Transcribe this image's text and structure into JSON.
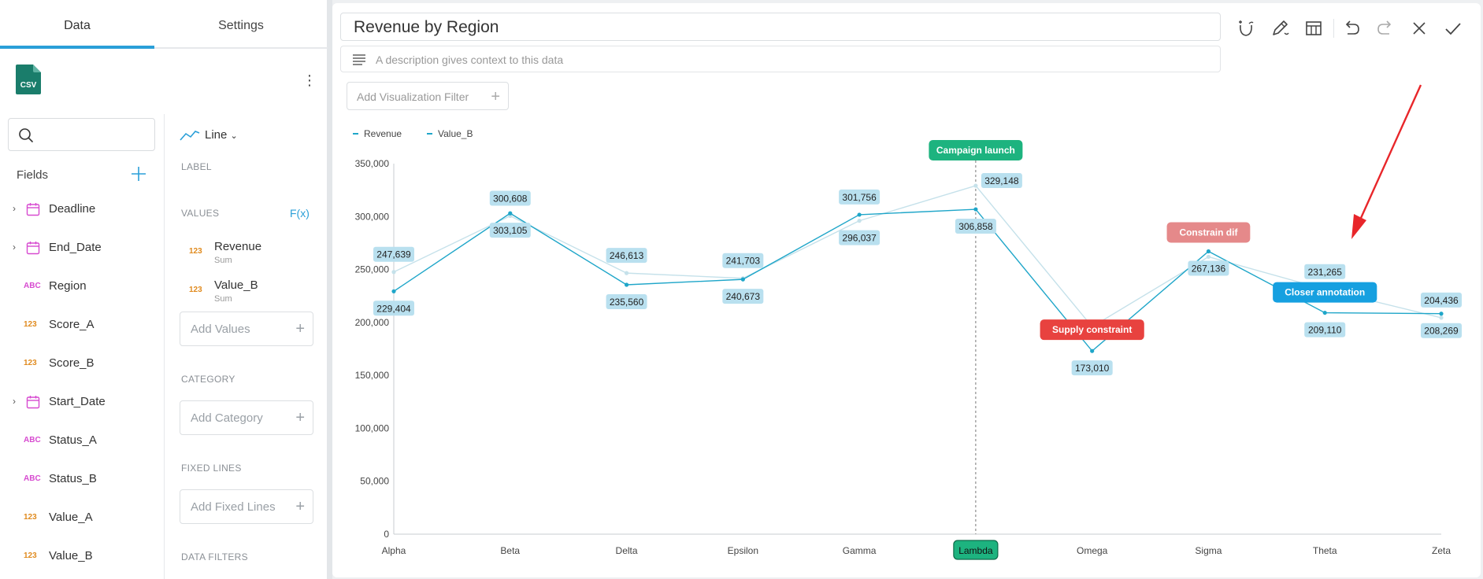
{
  "tabs": {
    "data": "Data",
    "settings": "Settings"
  },
  "source": {
    "icon_text": "CSV",
    "icon_color": "#1a7d6b"
  },
  "search": {
    "value": "",
    "placeholder": ""
  },
  "fields": {
    "title": "Fields",
    "items": [
      {
        "name": "Deadline",
        "type": "date",
        "expandable": true
      },
      {
        "name": "End_Date",
        "type": "date",
        "expandable": true
      },
      {
        "name": "Region",
        "type": "abc",
        "expandable": false
      },
      {
        "name": "Score_A",
        "type": "num",
        "expandable": false
      },
      {
        "name": "Score_B",
        "type": "num",
        "expandable": false
      },
      {
        "name": "Start_Date",
        "type": "date",
        "expandable": true
      },
      {
        "name": "Status_A",
        "type": "abc",
        "expandable": false
      },
      {
        "name": "Status_B",
        "type": "abc",
        "expandable": false
      },
      {
        "name": "Value_A",
        "type": "num",
        "expandable": false
      },
      {
        "name": "Value_B",
        "type": "num",
        "expandable": false
      }
    ],
    "type_badges": {
      "abc": "ABC",
      "num": "123"
    }
  },
  "config": {
    "viz_type": "Line",
    "label_section": "LABEL",
    "values_section": "VALUES",
    "fx": "F(x)",
    "values": [
      {
        "name": "Revenue",
        "agg": "Sum"
      },
      {
        "name": "Value_B",
        "agg": "Sum"
      }
    ],
    "add_values": "Add Values",
    "category_section": "CATEGORY",
    "add_category": "Add Category",
    "fixed_lines_section": "FIXED LINES",
    "add_fixed_lines": "Add Fixed Lines",
    "data_filters_section": "DATA FILTERS"
  },
  "editor": {
    "title": "Revenue by Region",
    "description_placeholder": "A description gives context to this data",
    "add_filter": "Add Visualization Filter"
  },
  "chart_data": {
    "type": "line",
    "categories": [
      "Alpha",
      "Beta",
      "Delta",
      "Epsilon",
      "Gamma",
      "Lambda",
      "Omega",
      "Sigma",
      "Theta",
      "Zeta"
    ],
    "highlight_category": "Lambda",
    "series": [
      {
        "name": "Revenue",
        "color": "#1fa6c9",
        "values": [
          229404,
          303105,
          235560,
          240673,
          301756,
          306858,
          173010,
          267136,
          209110,
          208269
        ]
      },
      {
        "name": "Value_B",
        "color": "#c5e1ea",
        "values": [
          247639,
          300608,
          246613,
          241703,
          296037,
          329148,
          196000,
          262000,
          231265,
          204436
        ]
      }
    ],
    "data_labels": [
      {
        "text": "229,404",
        "category": "Alpha",
        "value": 229404,
        "side": "below"
      },
      {
        "text": "247,639",
        "category": "Alpha",
        "value": 247639,
        "side": "above"
      },
      {
        "text": "300,608",
        "category": "Beta",
        "value": 300608,
        "side": "above"
      },
      {
        "text": "303,105",
        "category": "Beta",
        "value": 303105,
        "side": "below"
      },
      {
        "text": "246,613",
        "category": "Delta",
        "value": 246613,
        "side": "above"
      },
      {
        "text": "235,560",
        "category": "Delta",
        "value": 235560,
        "side": "below"
      },
      {
        "text": "241,703",
        "category": "Epsilon",
        "value": 241703,
        "side": "above"
      },
      {
        "text": "240,673",
        "category": "Epsilon",
        "value": 240673,
        "side": "below"
      },
      {
        "text": "301,756",
        "category": "Gamma",
        "value": 301756,
        "side": "above"
      },
      {
        "text": "296,037",
        "category": "Gamma",
        "value": 296037,
        "side": "below"
      },
      {
        "text": "329,148",
        "category": "Lambda",
        "value": 329148,
        "side": "right"
      },
      {
        "text": "306,858",
        "category": "Lambda",
        "value": 306858,
        "side": "below"
      },
      {
        "text": "173,010",
        "category": "Omega",
        "value": 173010,
        "side": "below"
      },
      {
        "text": "267,136",
        "category": "Sigma",
        "value": 267136,
        "side": "below"
      },
      {
        "text": "231,265",
        "category": "Theta",
        "value": 231265,
        "side": "above"
      },
      {
        "text": "209,110",
        "category": "Theta",
        "value": 209110,
        "side": "below"
      },
      {
        "text": "204,436",
        "category": "Zeta",
        "value": 204436,
        "side": "above"
      },
      {
        "text": "208,269",
        "category": "Zeta",
        "value": 208269,
        "side": "below"
      }
    ],
    "annotations": [
      {
        "text": "Campaign launch",
        "category": "Lambda",
        "color": "#1db37f",
        "vertical_line": true
      },
      {
        "text": "Supply constraint",
        "category": "Omega",
        "color": "#e8423f",
        "vertical_line": false
      },
      {
        "text": "Constrain dif",
        "category": "Sigma",
        "color": "#e5898a",
        "vertical_line": false
      },
      {
        "text": "Closer annotation",
        "category": "Theta",
        "color": "#16a0e0",
        "vertical_line": false
      }
    ],
    "y_ticks": [
      "0",
      "50,000",
      "100,000",
      "150,000",
      "200,000",
      "250,000",
      "300,000",
      "350,000"
    ],
    "ylim": [
      0,
      350000
    ],
    "legend_position": "top-left",
    "grid": false,
    "title": "",
    "xlabel": "",
    "ylabel": ""
  },
  "arrow_color": "#e8262a"
}
